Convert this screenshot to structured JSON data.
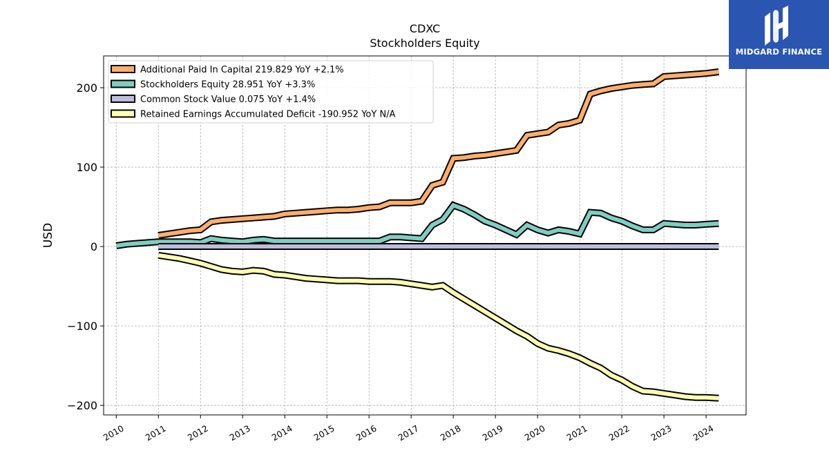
{
  "chart_data": {
    "type": "line",
    "title": "CDXC",
    "subtitle": "Stockholders  Equity",
    "ylabel": "USD",
    "xlabel": "",
    "xlim": [
      2009.7,
      2024.95
    ],
    "ylim": [
      -212,
      240
    ],
    "xticks": [
      "2010",
      "2011",
      "2012",
      "2013",
      "2014",
      "2015",
      "2016",
      "2017",
      "2018",
      "2019",
      "2020",
      "2021",
      "2022",
      "2023",
      "2024"
    ],
    "yticks": [
      -200,
      -100,
      0,
      100,
      200
    ],
    "ytick_labels": [
      "−200",
      "−100",
      "0",
      "100",
      "200"
    ],
    "grid": true,
    "legend_position": "top-left",
    "series": [
      {
        "name": "Additional Paid In Capital  219.829 YoY +2.1%",
        "color": "#fdae6b",
        "x": [
          2011.0,
          2011.25,
          2011.5,
          2011.75,
          2012.0,
          2012.25,
          2012.5,
          2012.75,
          2013.0,
          2013.25,
          2013.5,
          2013.75,
          2014.0,
          2014.25,
          2014.5,
          2014.75,
          2015.0,
          2015.25,
          2015.5,
          2015.75,
          2016.0,
          2016.25,
          2016.5,
          2016.75,
          2017.0,
          2017.25,
          2017.5,
          2017.75,
          2018.0,
          2018.25,
          2018.5,
          2018.75,
          2019.0,
          2019.25,
          2019.5,
          2019.75,
          2020.0,
          2020.25,
          2020.5,
          2020.75,
          2021.0,
          2021.25,
          2021.5,
          2021.75,
          2022.0,
          2022.25,
          2022.5,
          2022.75,
          2023.0,
          2023.25,
          2023.5,
          2023.75,
          2024.0,
          2024.3
        ],
        "values": [
          14,
          16,
          18,
          20,
          21,
          31,
          33,
          34,
          35,
          36,
          37,
          38,
          41,
          42,
          43,
          44,
          45,
          46,
          46,
          47,
          49,
          50,
          55,
          55,
          55,
          57,
          77,
          81,
          111,
          112,
          114,
          115,
          117,
          119,
          121,
          140,
          142,
          144,
          153,
          155,
          159,
          192,
          196,
          199,
          201,
          203,
          204,
          205,
          214,
          215,
          216,
          217,
          218,
          220
        ]
      },
      {
        "name": "Stockholders Equity  28.951 YoY +3.3%",
        "color": "#80cdc1",
        "x": [
          2010.0,
          2010.25,
          2010.5,
          2010.75,
          2011.0,
          2011.25,
          2011.5,
          2011.75,
          2012.0,
          2012.25,
          2012.5,
          2012.75,
          2013.0,
          2013.25,
          2013.5,
          2013.75,
          2014.0,
          2014.25,
          2014.5,
          2014.75,
          2015.0,
          2015.25,
          2015.5,
          2015.75,
          2016.0,
          2016.25,
          2016.5,
          2016.75,
          2017.0,
          2017.25,
          2017.5,
          2017.75,
          2018.0,
          2018.25,
          2018.5,
          2018.75,
          2019.0,
          2019.25,
          2019.5,
          2019.75,
          2020.0,
          2020.25,
          2020.5,
          2020.75,
          2021.0,
          2021.25,
          2021.5,
          2021.75,
          2022.0,
          2022.25,
          2022.5,
          2022.75,
          2023.0,
          2023.25,
          2023.5,
          2023.75,
          2024.0,
          2024.3
        ],
        "values": [
          1,
          3,
          4,
          5,
          6,
          6,
          6,
          6,
          5,
          10,
          8,
          7,
          6,
          8,
          9,
          7,
          7,
          7,
          7,
          7,
          7,
          7,
          7,
          7,
          7,
          7,
          12,
          12,
          11,
          10,
          27,
          34,
          52,
          47,
          40,
          32,
          27,
          21,
          15,
          27,
          21,
          17,
          21,
          19,
          16,
          43,
          42,
          36,
          32,
          26,
          21,
          21,
          29,
          28,
          27,
          27,
          28,
          29
        ]
      },
      {
        "name": "Common Stock Value  0.075 YoY +1.4%",
        "color": "#bcbddc",
        "x": [
          2011.0,
          2011.5,
          2012.0,
          2013.0,
          2014.0,
          2015.0,
          2016.0,
          2017.0,
          2018.0,
          2019.0,
          2020.0,
          2021.0,
          2022.0,
          2023.0,
          2024.0,
          2024.3
        ],
        "values": [
          0.07,
          0.07,
          0.07,
          0.07,
          0.07,
          0.07,
          0.07,
          0.07,
          0.07,
          0.07,
          0.07,
          0.07,
          0.07,
          0.07,
          0.074,
          0.075
        ]
      },
      {
        "name": "Retained Earnings Accumulated Deficit  -190.952 YoY N/A",
        "color": "#ffffb3",
        "x": [
          2011.0,
          2011.25,
          2011.5,
          2011.75,
          2012.0,
          2012.25,
          2012.5,
          2012.75,
          2013.0,
          2013.25,
          2013.5,
          2013.75,
          2014.0,
          2014.25,
          2014.5,
          2014.75,
          2015.0,
          2015.25,
          2015.5,
          2015.75,
          2016.0,
          2016.25,
          2016.5,
          2016.75,
          2017.0,
          2017.25,
          2017.5,
          2017.75,
          2018.0,
          2018.25,
          2018.5,
          2018.75,
          2019.0,
          2019.25,
          2019.5,
          2019.75,
          2020.0,
          2020.25,
          2020.5,
          2020.75,
          2021.0,
          2021.25,
          2021.5,
          2021.75,
          2022.0,
          2022.25,
          2022.5,
          2022.75,
          2023.0,
          2023.25,
          2023.5,
          2023.75,
          2024.0,
          2024.3
        ],
        "values": [
          -11,
          -13,
          -15,
          -18,
          -21,
          -25,
          -29,
          -31,
          -32,
          -30,
          -31,
          -35,
          -36,
          -38,
          -40,
          -41,
          -42,
          -43,
          -43,
          -43,
          -44,
          -44,
          -44,
          -45,
          -47,
          -49,
          -51,
          -49,
          -58,
          -66,
          -74,
          -82,
          -90,
          -98,
          -106,
          -113,
          -122,
          -128,
          -131,
          -135,
          -140,
          -147,
          -153,
          -162,
          -168,
          -176,
          -182,
          -183,
          -185,
          -187,
          -189,
          -190,
          -190,
          -191
        ]
      }
    ]
  },
  "logo": {
    "text": "MIDGARD FINANCE"
  }
}
